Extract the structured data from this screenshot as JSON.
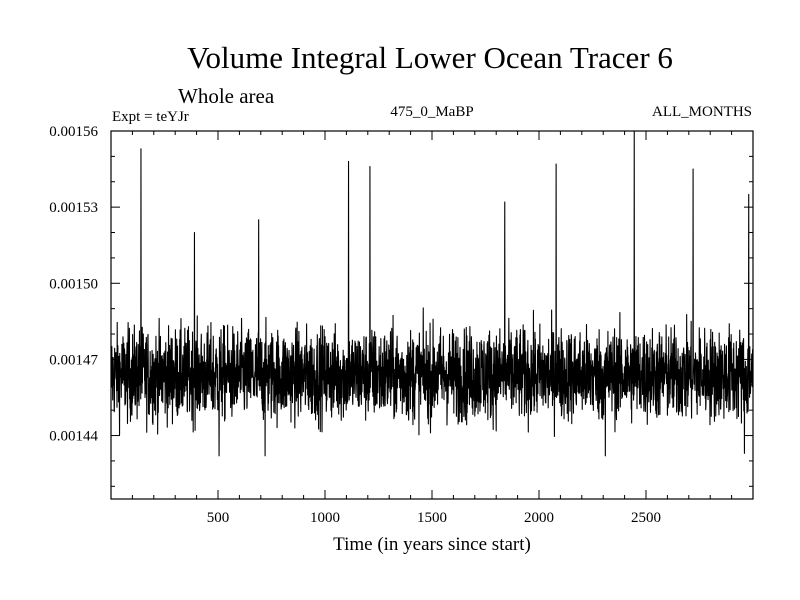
{
  "chart_data": {
    "type": "line",
    "title": "Volume Integral Lower Ocean Tracer 6",
    "subtitle": "Whole area",
    "experiment_label": "Expt = teYJr",
    "period_label": "475_0_MaBP",
    "season_label": "ALL_MONTHS",
    "xlabel": "Time (in years since start)",
    "ylabel": "",
    "xlim": [
      0,
      3000
    ],
    "ylim": [
      0.001415,
      0.00156
    ],
    "x_ticks": [
      500,
      1000,
      1500,
      2000,
      2500
    ],
    "x_tick_labels": [
      "500",
      "1000",
      "1500",
      "2000",
      "2500"
    ],
    "y_ticks": [
      0.00144,
      0.00147,
      0.0015,
      0.00153,
      0.00156
    ],
    "y_tick_labels": [
      "0.00144",
      "0.00147",
      "0.00150",
      "0.00153",
      "0.00156"
    ],
    "grid": false,
    "series": [
      {
        "name": "Volume Integral Lower Ocean Tracer 6",
        "color": "#000000",
        "baseline": 0.001464,
        "noise_amplitude": 1.8e-05,
        "n_points": 3000,
        "peaks": [
          {
            "x": 140,
            "y": 0.001553
          },
          {
            "x": 390,
            "y": 0.00152
          },
          {
            "x": 690,
            "y": 0.001525
          },
          {
            "x": 1110,
            "y": 0.001548
          },
          {
            "x": 1210,
            "y": 0.001546
          },
          {
            "x": 1840,
            "y": 0.001532
          },
          {
            "x": 2080,
            "y": 0.001547
          },
          {
            "x": 2445,
            "y": 0.00156
          },
          {
            "x": 2720,
            "y": 0.001545
          },
          {
            "x": 2980,
            "y": 0.001535
          }
        ],
        "troughs": [
          {
            "x": 505,
            "y": 0.001432
          },
          {
            "x": 720,
            "y": 0.001432
          },
          {
            "x": 2310,
            "y": 0.001432
          },
          {
            "x": 2960,
            "y": 0.001433
          }
        ]
      }
    ]
  }
}
